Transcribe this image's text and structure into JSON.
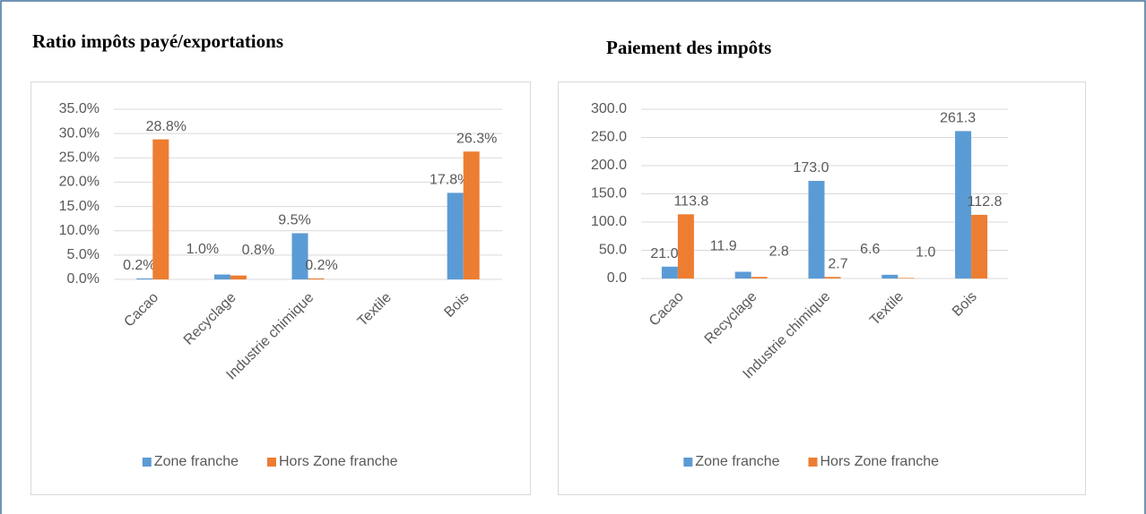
{
  "chart_data": [
    {
      "type": "bar",
      "title": "Ratio impôts payé/exportations",
      "categories": [
        "Cacao",
        "Recyclage",
        "Industrie chimique",
        "Textile",
        "Bois"
      ],
      "series": [
        {
          "name": "Zone franche",
          "color": "#5b9bd5",
          "values": [
            0.2,
            1.0,
            9.5,
            null,
            17.8
          ],
          "value_labels": [
            "0.2%",
            "1.0%",
            "9.5%",
            null,
            "17.8%"
          ]
        },
        {
          "name": "Hors Zone franche",
          "color": "#ed7d31",
          "values": [
            28.8,
            0.8,
            0.2,
            null,
            26.3
          ],
          "value_labels": [
            "28.8%",
            "0.8%",
            "0.2%",
            null,
            "26.3%"
          ]
        }
      ],
      "ylim": [
        0,
        35
      ],
      "yticks": [
        {
          "value": 0,
          "label": "0.0%"
        },
        {
          "value": 5,
          "label": "5.0%"
        },
        {
          "value": 10,
          "label": "10.0%"
        },
        {
          "value": 15,
          "label": "15.0%"
        },
        {
          "value": 20,
          "label": "20.0%"
        },
        {
          "value": 25,
          "label": "25.0%"
        },
        {
          "value": 30,
          "label": "30.0%"
        },
        {
          "value": 35,
          "label": "35.0%"
        }
      ],
      "grid": true,
      "legend": "bottom"
    },
    {
      "type": "bar",
      "title": "Paiement des impôts",
      "categories": [
        "Cacao",
        "Recyclage",
        "Industrie chimique",
        "Textile",
        "Bois"
      ],
      "series": [
        {
          "name": "Zone franche",
          "color": "#5b9bd5",
          "values": [
            21.0,
            11.9,
            173.0,
            6.6,
            261.3
          ],
          "value_labels": [
            "21.0",
            "11.9",
            "173.0",
            "6.6",
            "261.3"
          ]
        },
        {
          "name": "Hors Zone franche",
          "color": "#ed7d31",
          "values": [
            113.8,
            2.8,
            2.7,
            1.0,
            112.8
          ],
          "value_labels": [
            "113.8",
            "2.8",
            "2.7",
            "1.0",
            "112.8"
          ]
        }
      ],
      "ylim": [
        0,
        300
      ],
      "yticks": [
        {
          "value": 0,
          "label": "0.0"
        },
        {
          "value": 50,
          "label": "50.0"
        },
        {
          "value": 100,
          "label": "100.0"
        },
        {
          "value": 150,
          "label": "150.0"
        },
        {
          "value": 200,
          "label": "200.0"
        },
        {
          "value": 250,
          "label": "250.0"
        },
        {
          "value": 300,
          "label": "300.0"
        }
      ],
      "grid": true,
      "legend": "bottom"
    }
  ]
}
